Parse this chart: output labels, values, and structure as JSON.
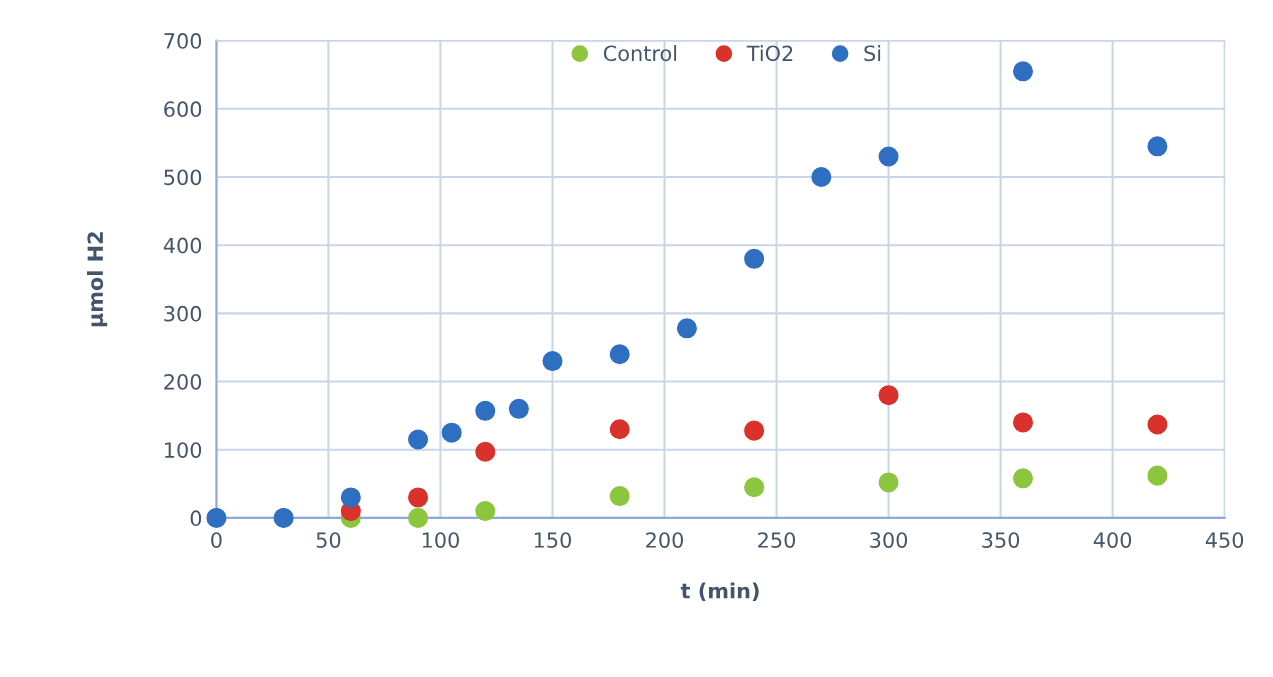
{
  "chart_data": {
    "type": "scatter",
    "xlabel": "t (min)",
    "ylabel": "µmol H2",
    "xlim": [
      0,
      450
    ],
    "xticks": [
      0,
      50,
      100,
      150,
      200,
      250,
      300,
      350,
      400,
      450
    ],
    "ylim": [
      0,
      700
    ],
    "yticks": [
      0,
      100,
      200,
      300,
      400,
      500,
      600,
      700
    ],
    "grid": true,
    "legend": "top",
    "marker": "circle",
    "series": [
      {
        "name": "Control",
        "color": "#8cc63f",
        "x": [
          60,
          90,
          120,
          180,
          240,
          300,
          360,
          420
        ],
        "values": [
          0,
          0,
          10,
          32,
          45,
          52,
          58,
          62
        ]
      },
      {
        "name": "TiO2",
        "color": "#d9312b",
        "x": [
          60,
          90,
          120,
          180,
          240,
          300,
          360,
          420
        ],
        "values": [
          10,
          30,
          97,
          130,
          128,
          180,
          140,
          137
        ]
      },
      {
        "name": "Si",
        "color": "#2f6fc2",
        "x": [
          0,
          30,
          60,
          90,
          105,
          120,
          135,
          150,
          180,
          210,
          240,
          270,
          300,
          360,
          420
        ],
        "values": [
          0,
          0,
          30,
          115,
          125,
          157,
          160,
          230,
          240,
          278,
          380,
          500,
          530,
          655,
          545
        ]
      }
    ]
  }
}
